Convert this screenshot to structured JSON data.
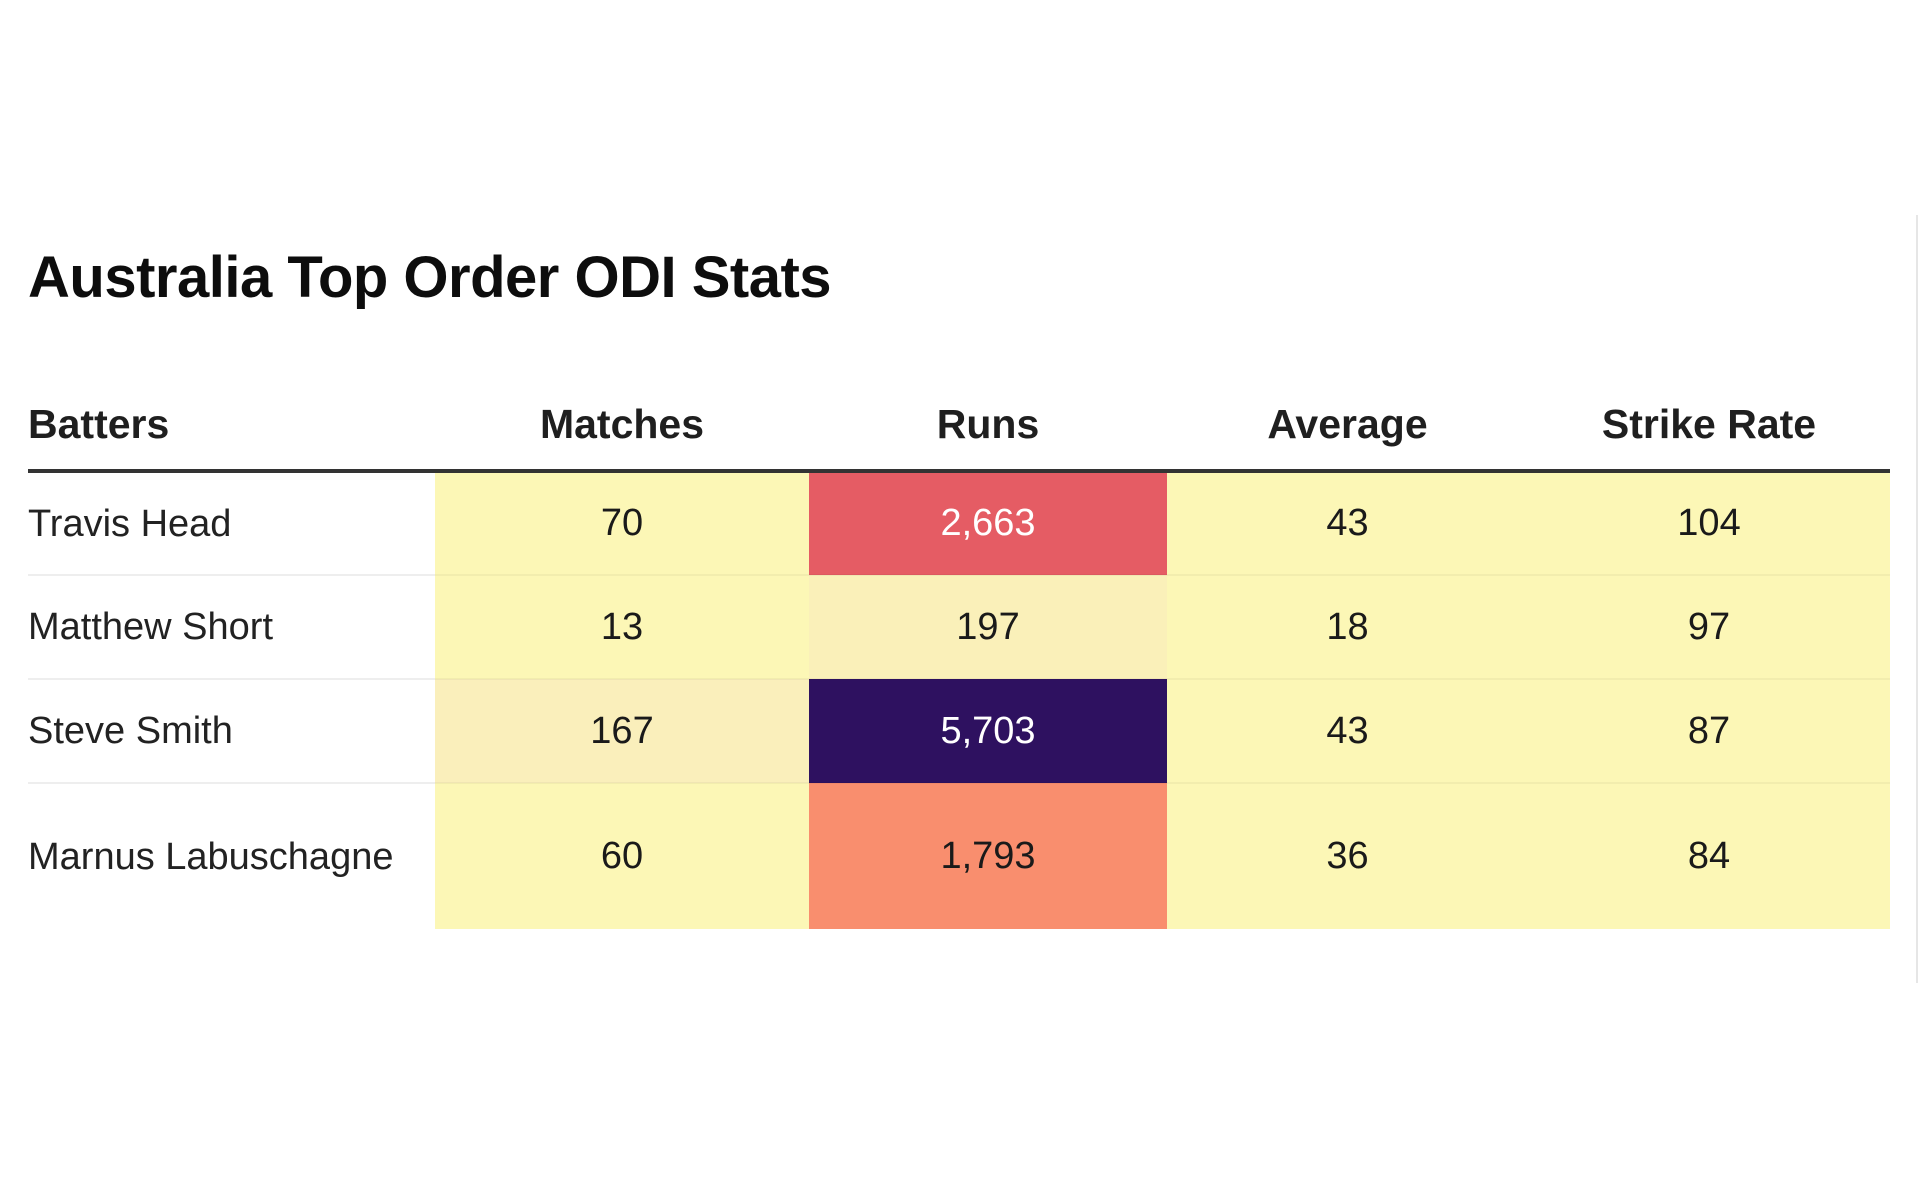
{
  "chart_data": {
    "type": "table",
    "title": "Australia Top Order ODI Stats",
    "columns": [
      "Batters",
      "Matches",
      "Runs",
      "Average",
      "Strike Rate"
    ],
    "rows": [
      {
        "batter": "Travis Head",
        "matches": "70",
        "runs": "2,663",
        "average": "43",
        "strike_rate": "104"
      },
      {
        "batter": "Matthew Short",
        "matches": "13",
        "runs": "197",
        "average": "18",
        "strike_rate": "97"
      },
      {
        "batter": "Steve Smith",
        "matches": "167",
        "runs": "5,703",
        "average": "43",
        "strike_rate": "87"
      },
      {
        "batter": "Marnus Labuschagne",
        "matches": "60",
        "runs": "1,793",
        "average": "36",
        "strike_rate": "84"
      }
    ],
    "cell_colors": {
      "matches": [
        "#fcf7b6",
        "#fcf7b6",
        "#faefbb",
        "#fcf7b6"
      ],
      "runs": [
        "#e55c64",
        "#faf0b9",
        "#2e1160",
        "#f98e6e"
      ],
      "average": [
        "#fcf7b6",
        "#fcf7b6",
        "#fcf7b6",
        "#fcf7b6"
      ],
      "strike_rate": [
        "#fcf7b6",
        "#fcf7b6",
        "#fcf7b6",
        "#fcf7b6"
      ]
    },
    "cell_text_colors": {
      "runs": [
        "#ffffff",
        "#1a1a1a",
        "#ffffff",
        "#1a1a1a"
      ]
    },
    "colormap": "magma (reversed)",
    "grid": false,
    "legend": "none"
  }
}
